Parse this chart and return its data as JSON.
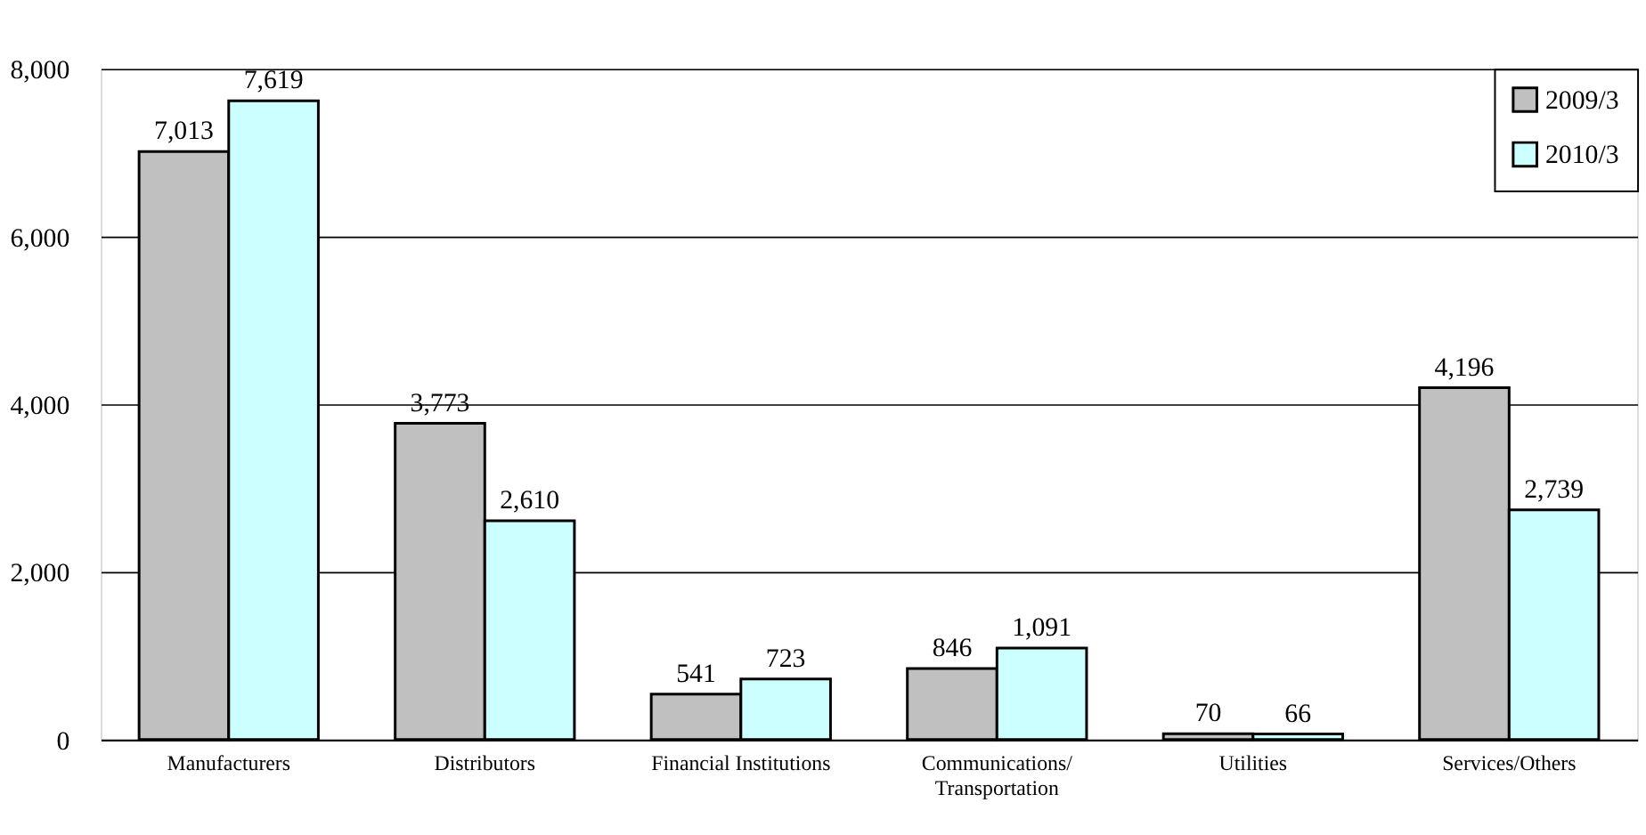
{
  "chart_data": {
    "type": "bar",
    "categories": [
      "Manufacturers",
      "Distributors",
      "Financial Institutions",
      "Communications/\nTransportation",
      "Utilities",
      "Services/Others"
    ],
    "series": [
      {
        "name": "2009/3",
        "color": "#c0c0c0",
        "values": [
          7013,
          3773,
          541,
          846,
          70,
          4196
        ],
        "value_labels": [
          "7,013",
          "3,773",
          "541",
          "846",
          "70",
          "4,196"
        ]
      },
      {
        "name": "2010/3",
        "color": "#ccffff",
        "values": [
          7619,
          2610,
          723,
          1091,
          66,
          2739
        ],
        "value_labels": [
          "7,619",
          "2,610",
          "723",
          "1,091",
          "66",
          "2,739"
        ]
      }
    ],
    "ylim": [
      0,
      8000
    ],
    "yticks": [
      {
        "value": 0,
        "label": "0"
      },
      {
        "value": 2000,
        "label": "2,000"
      },
      {
        "value": 4000,
        "label": "4,000"
      },
      {
        "value": 6000,
        "label": "6,000"
      },
      {
        "value": 8000,
        "label": "8,000"
      }
    ],
    "grid": "y",
    "legend": "top right"
  }
}
